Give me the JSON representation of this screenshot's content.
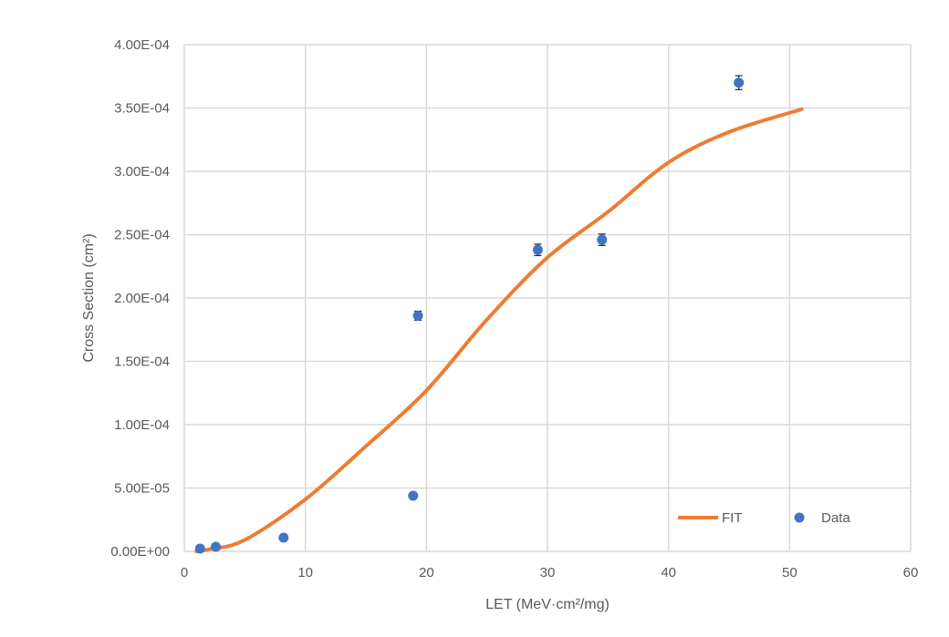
{
  "chart_data": {
    "type": "scatter",
    "xlabel": "LET (MeV·cm²/mg)",
    "ylabel": "Cross Section (cm²)",
    "xlim": [
      0,
      60
    ],
    "ylim": [
      0,
      0.0004
    ],
    "x_ticks": [
      0,
      10,
      20,
      30,
      40,
      50,
      60
    ],
    "x_tick_labels": [
      "0",
      "10",
      "20",
      "30",
      "40",
      "50",
      "60"
    ],
    "y_ticks": [
      0,
      5e-05,
      0.0001,
      0.00015,
      0.0002,
      0.00025,
      0.0003,
      0.00035,
      0.0004
    ],
    "y_tick_labels": [
      "0.00E+00",
      "5.00E-05",
      "1.00E-04",
      "1.50E-04",
      "2.00E-04",
      "2.50E-04",
      "3.00E-04",
      "3.50E-04",
      "4.00E-04"
    ],
    "grid": true,
    "legend_placement": "bottom-right",
    "series": [
      {
        "name": "FIT",
        "kind": "line",
        "color": "#ED7D31",
        "x": [
          1,
          2,
          5,
          10,
          15,
          20,
          25,
          30,
          35,
          40,
          45,
          51
        ],
        "y": [
          0,
          1.5e-06,
          9e-06,
          4.1e-05,
          8.3e-05,
          0.000127,
          0.000183,
          0.000232,
          0.000268,
          0.000307,
          0.000331,
          0.000349
        ]
      },
      {
        "name": "Data",
        "kind": "scatter",
        "color": "#4472C4",
        "x": [
          1.3,
          2.6,
          8.2,
          18.9,
          19.3,
          29.2,
          34.5,
          45.8
        ],
        "y": [
          2.2e-06,
          3.6e-06,
          1.08e-05,
          4.39e-05,
          0.000186,
          0.000238,
          0.000246,
          0.00037
        ],
        "error": [
          0,
          0,
          0,
          1.5e-06,
          3.6e-06,
          4.5e-06,
          4.5e-06,
          5.5e-06
        ]
      }
    ]
  }
}
